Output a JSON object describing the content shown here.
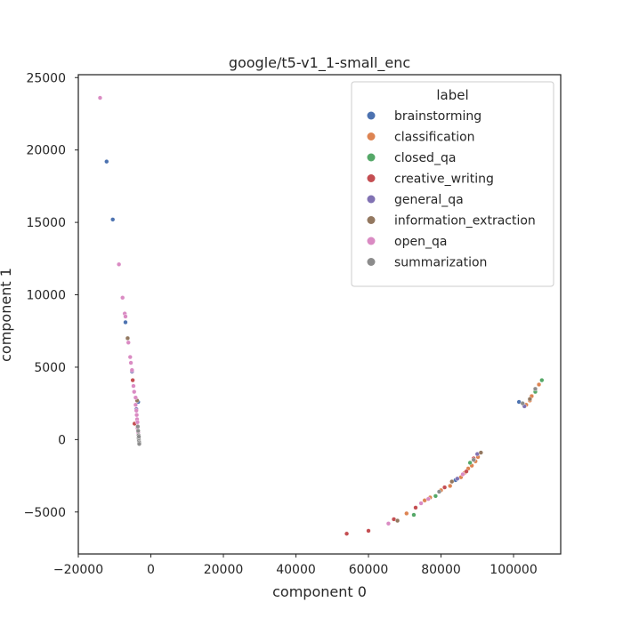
{
  "chart_data": {
    "type": "scatter",
    "title": "google/t5-v1_1-small_enc",
    "xlabel": "component 0",
    "ylabel": "component 1",
    "xlim": [
      -20000,
      113000
    ],
    "ylim": [
      -7900,
      25200
    ],
    "x_ticks": [
      -20000,
      0,
      20000,
      40000,
      60000,
      80000,
      100000
    ],
    "y_ticks": [
      -5000,
      0,
      5000,
      10000,
      15000,
      20000,
      25000
    ],
    "x_tick_labels": [
      "−20000",
      "0",
      "20000",
      "40000",
      "60000",
      "80000",
      "100000"
    ],
    "y_tick_labels": [
      "−5000",
      "0",
      "5000",
      "10000",
      "15000",
      "20000",
      "25000"
    ],
    "grid": false,
    "legend": {
      "title": "label",
      "placement": "top-right"
    },
    "series": [
      {
        "name": "brainstorming",
        "color": "#4c72b0",
        "points": [
          [
            -12200,
            19200
          ],
          [
            -10500,
            15200
          ],
          [
            -7000,
            8100
          ],
          [
            -3500,
            2600
          ],
          [
            84000,
            -2800
          ],
          [
            101500,
            2600
          ]
        ]
      },
      {
        "name": "classification",
        "color": "#dd8452",
        "points": [
          [
            70500,
            -5100
          ],
          [
            75500,
            -4200
          ],
          [
            77000,
            -4000
          ],
          [
            80000,
            -3500
          ],
          [
            82500,
            -3200
          ],
          [
            85500,
            -2600
          ],
          [
            86500,
            -2300
          ],
          [
            87500,
            -2000
          ],
          [
            88500,
            -1800
          ],
          [
            89500,
            -1500
          ],
          [
            90200,
            -1200
          ],
          [
            103500,
            2400
          ],
          [
            104500,
            2700
          ],
          [
            105000,
            3000
          ],
          [
            107000,
            3800
          ]
        ]
      },
      {
        "name": "closed_qa",
        "color": "#55a868",
        "points": [
          [
            72500,
            -5200
          ],
          [
            78500,
            -3900
          ],
          [
            88000,
            -1600
          ],
          [
            106000,
            3300
          ],
          [
            107800,
            4100
          ]
        ]
      },
      {
        "name": "creative_writing",
        "color": "#c44e52",
        "points": [
          [
            54000,
            -6500
          ],
          [
            60000,
            -6300
          ],
          [
            67000,
            -5500
          ],
          [
            73000,
            -4700
          ],
          [
            81000,
            -3300
          ],
          [
            87000,
            -2200
          ],
          [
            -5000,
            4100
          ],
          [
            -4500,
            1100
          ],
          [
            89000,
            -1300
          ]
        ]
      },
      {
        "name": "general_qa",
        "color": "#8172b3",
        "points": [
          [
            84500,
            -2700
          ],
          [
            90000,
            -1000
          ],
          [
            103000,
            2300
          ],
          [
            -5200,
            4700
          ],
          [
            -4000,
            2100
          ]
        ]
      },
      {
        "name": "information_extraction",
        "color": "#937860",
        "points": [
          [
            68000,
            -5600
          ],
          [
            83000,
            -2900
          ],
          [
            91000,
            -900
          ],
          [
            104500,
            2800
          ],
          [
            -6400,
            7000
          ],
          [
            -3800,
            2700
          ]
        ]
      },
      {
        "name": "open_qa",
        "color": "#da8bc3",
        "points": [
          [
            -14000,
            23600
          ],
          [
            -8800,
            12100
          ],
          [
            -7800,
            9800
          ],
          [
            -7200,
            8700
          ],
          [
            -7000,
            8500
          ],
          [
            -6200,
            6700
          ],
          [
            -5700,
            5700
          ],
          [
            -5500,
            5300
          ],
          [
            -5200,
            4800
          ],
          [
            -4800,
            3700
          ],
          [
            -4600,
            3300
          ],
          [
            -4200,
            2900
          ],
          [
            -4200,
            2400
          ],
          [
            -4000,
            2000
          ],
          [
            -3900,
            1700
          ],
          [
            -3800,
            1400
          ],
          [
            -3700,
            1200
          ],
          [
            -3700,
            800
          ],
          [
            -3500,
            500
          ],
          [
            65500,
            -5800
          ],
          [
            74500,
            -4400
          ],
          [
            76500,
            -4100
          ],
          [
            86000,
            -2400
          ]
        ]
      },
      {
        "name": "summarization",
        "color": "#8c8c8c",
        "points": [
          [
            -3600,
            900
          ],
          [
            -3500,
            600
          ],
          [
            -3400,
            300
          ],
          [
            -3400,
            100
          ],
          [
            -3300,
            0
          ],
          [
            -3300,
            -100
          ],
          [
            -3200,
            -200
          ],
          [
            -3200,
            -300
          ],
          [
            -3300,
            200
          ],
          [
            79500,
            -3600
          ],
          [
            89000,
            -1400
          ],
          [
            102500,
            2500
          ],
          [
            106000,
            3500
          ]
        ]
      }
    ]
  }
}
